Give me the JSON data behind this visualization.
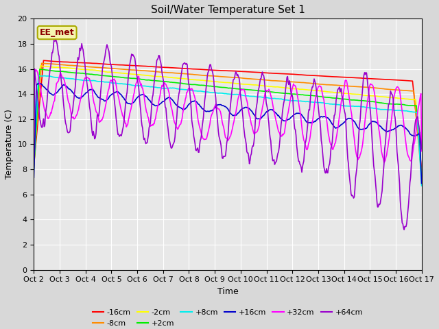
{
  "title": "Soil/Water Temperature Set 1",
  "xlabel": "Time",
  "ylabel": "Temperature (C)",
  "xlim": [
    0,
    15
  ],
  "ylim": [
    0,
    20
  ],
  "yticks": [
    0,
    2,
    4,
    6,
    8,
    10,
    12,
    14,
    16,
    18,
    20
  ],
  "xtick_labels": [
    "Oct 2",
    "Oct 3",
    "Oct 4",
    "Oct 5",
    "Oct 6",
    "Oct 7",
    "Oct 8",
    "Oct 9",
    "Oct 10",
    "Oct 11",
    "Oct 12",
    "Oct 13",
    "Oct 14",
    "Oct 15",
    "Oct 16",
    "Oct 17"
  ],
  "annotation": "EE_met",
  "fig_bg": "#d8d8d8",
  "ax_bg": "#e8e8e8",
  "grid_color": "#ffffff",
  "colors": {
    "-16cm": "#ff0000",
    "-8cm": "#ff8c00",
    "-2cm": "#ffff00",
    "+2cm": "#00ee00",
    "+8cm": "#00eeee",
    "+16cm": "#0000cc",
    "+32cm": "#ff00ff",
    "+64cm": "#9900cc"
  },
  "lw": 1.2,
  "title_fontsize": 11,
  "label_fontsize": 9,
  "tick_fontsize": 8,
  "legend_fontsize": 8
}
